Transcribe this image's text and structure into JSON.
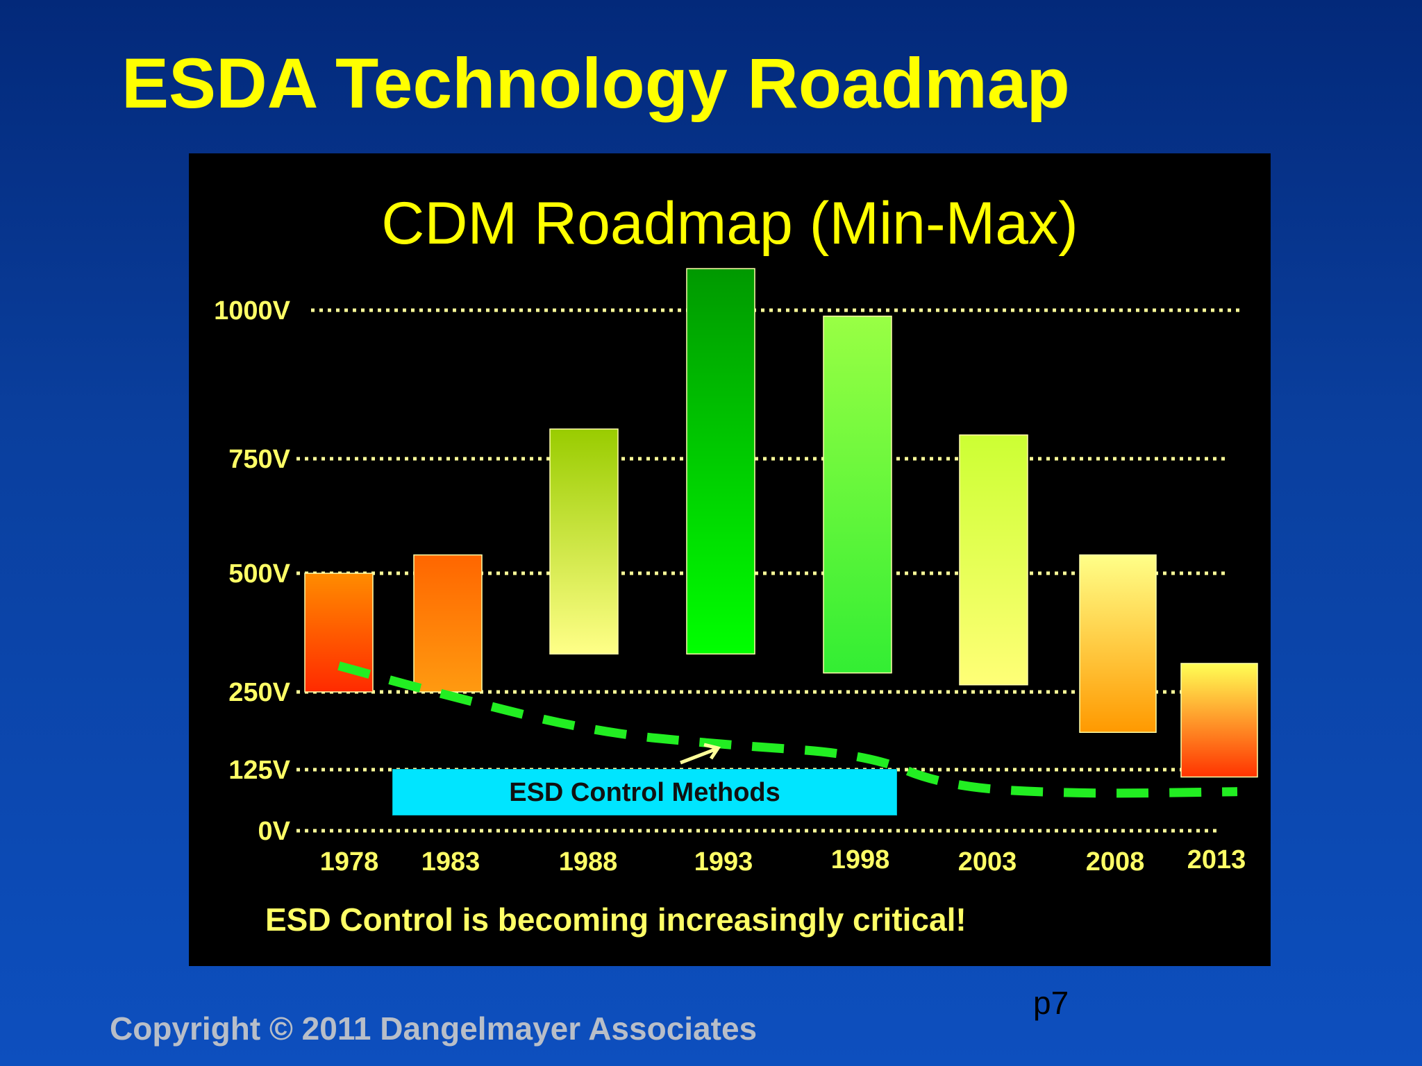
{
  "slide": {
    "title": "ESDA Technology Roadmap",
    "copyright": "Copyright © 2011 Dangelmayer Associates",
    "page_number": "p7"
  },
  "chart_data": {
    "type": "bar",
    "subtype": "floating-range",
    "title": "CDM Roadmap (Min-Max)",
    "categories": [
      "1978",
      "1983",
      "1988",
      "1993",
      "1998",
      "2003",
      "2008",
      "2013"
    ],
    "series": [
      {
        "ranges": [
          [
            250,
            500
          ],
          [
            250,
            540
          ],
          [
            330,
            800
          ],
          [
            330,
            1070
          ],
          [
            290,
            990
          ],
          [
            265,
            790
          ],
          [
            185,
            540
          ],
          [
            110,
            310
          ]
        ],
        "colors": [
          [
            "#ff8c00",
            "#ff2a00"
          ],
          [
            "#ff6600",
            "#ff9a10"
          ],
          [
            "#99cc00",
            "#ffff88"
          ],
          [
            "#009900",
            "#00ff00"
          ],
          [
            "#99ff44",
            "#33ee33"
          ],
          [
            "#ccff33",
            "#ffff77"
          ],
          [
            "#ffff88",
            "#ff9900"
          ],
          [
            "#ffff55",
            "#ff3300"
          ]
        ]
      }
    ],
    "y_ticks": [
      {
        "label": "0V",
        "value": 0
      },
      {
        "label": "125V",
        "value": 125
      },
      {
        "label": "250V",
        "value": 250
      },
      {
        "label": "500V",
        "value": 500
      },
      {
        "label": "750V",
        "value": 750
      },
      {
        "label": "1000V",
        "value": 1000
      }
    ],
    "grid": true,
    "trend_line": {
      "style": "dashed",
      "color": "#22ee22",
      "points": [
        [
          "1978",
          305
        ],
        [
          "1983",
          252
        ],
        [
          "1988",
          186
        ],
        [
          "1993",
          165
        ],
        [
          "1998",
          150
        ],
        [
          "2003",
          90
        ],
        [
          "2008",
          75
        ],
        [
          "2013",
          80
        ]
      ]
    },
    "annotations": {
      "control_box": "ESD Control Methods",
      "footnote": "ESD Control is becoming increasingly critical!"
    }
  }
}
